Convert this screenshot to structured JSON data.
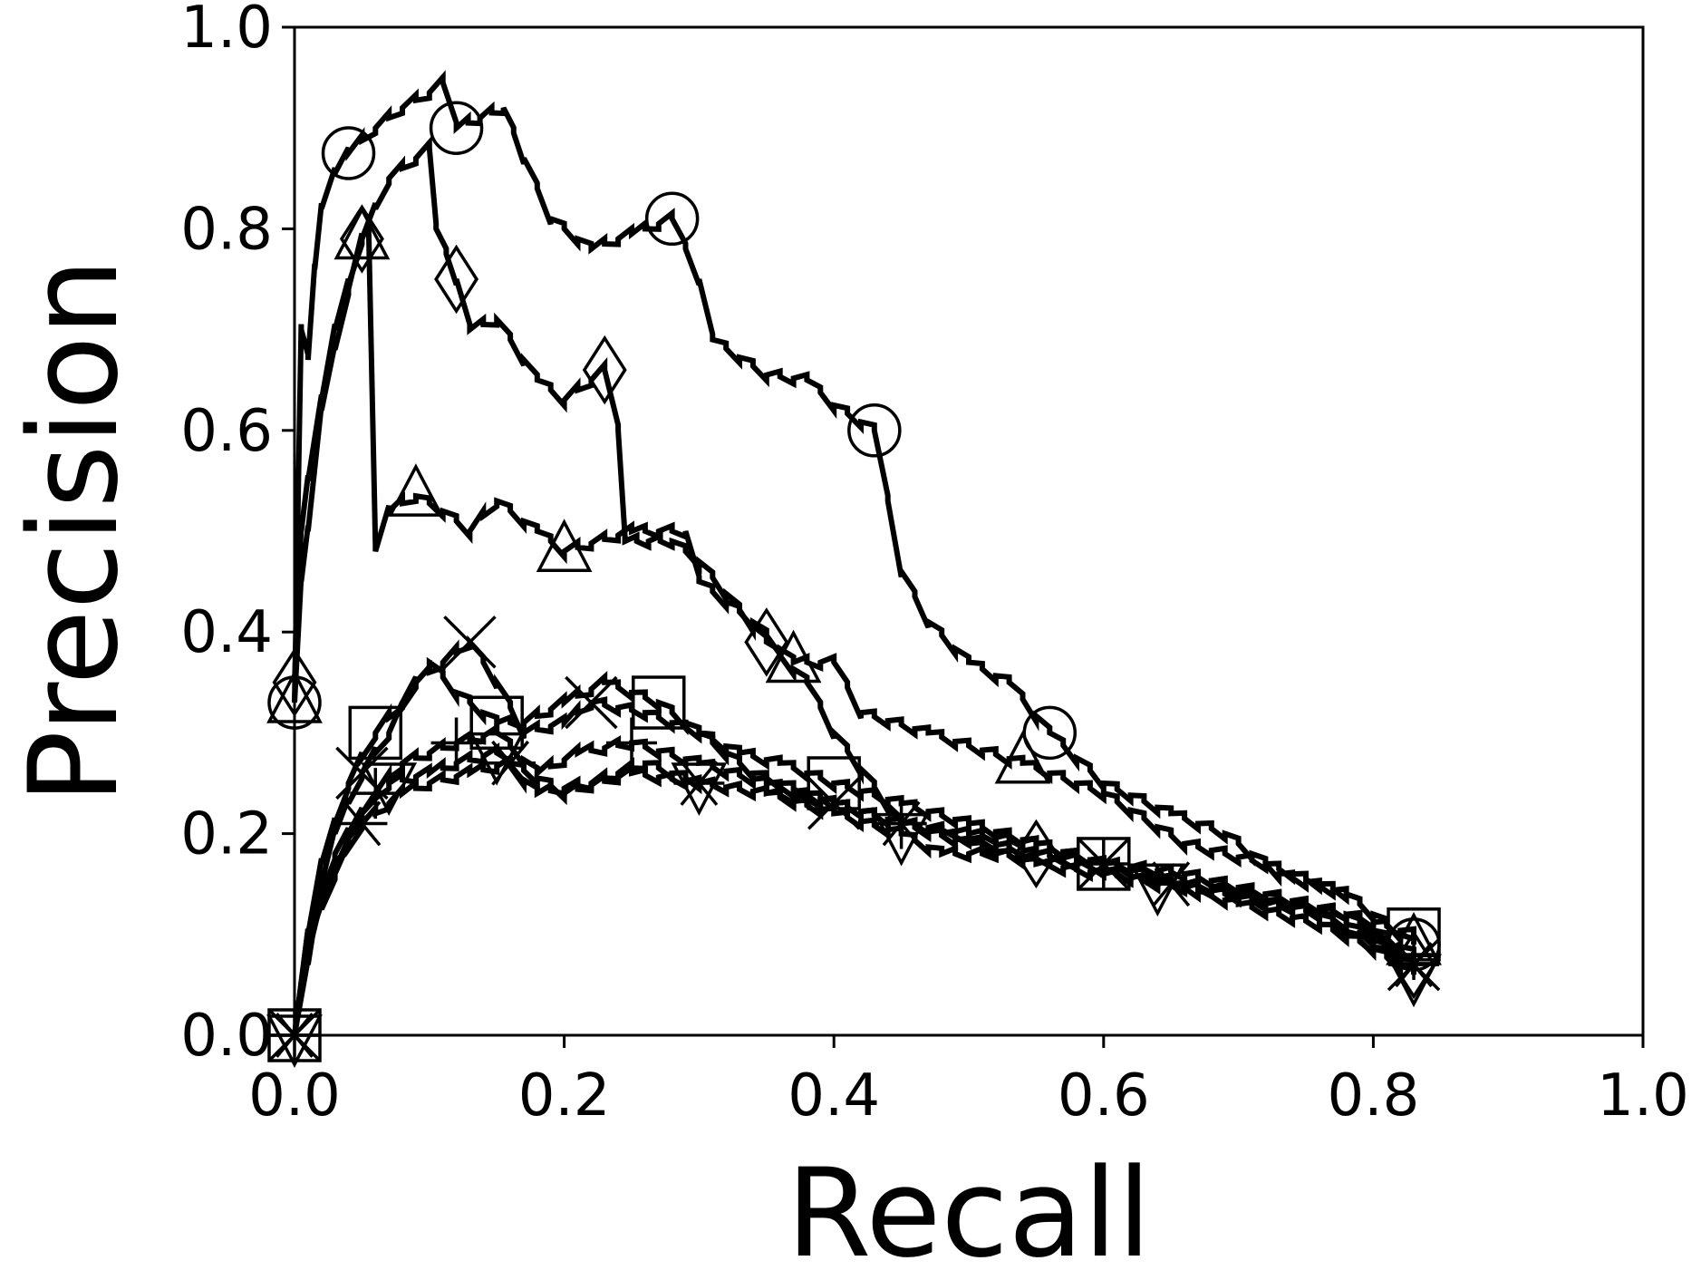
{
  "chart_data": {
    "type": "line",
    "xlabel": "Recall",
    "ylabel": "Precision",
    "xlim": [
      0.0,
      1.0
    ],
    "ylim": [
      0.0,
      1.0
    ],
    "xticks": [
      "0.0",
      "0.2",
      "0.4",
      "0.6",
      "0.8",
      "1.0"
    ],
    "yticks": [
      "0.0",
      "0.2",
      "0.4",
      "0.6",
      "0.8",
      "1.0"
    ],
    "grid": false,
    "legend": "none",
    "line_color": "#000000",
    "series": [
      {
        "marker": "circle",
        "x": [
          0.0,
          0.005,
          0.01,
          0.015,
          0.02,
          0.03,
          0.04,
          0.06,
          0.08,
          0.1,
          0.11,
          0.12,
          0.155,
          0.17,
          0.19,
          0.22,
          0.25,
          0.28,
          0.3,
          0.31,
          0.35,
          0.38,
          0.4,
          0.43,
          0.45,
          0.47,
          0.5,
          0.53,
          0.56,
          0.6,
          0.65,
          0.69,
          0.73,
          0.78,
          0.83
        ],
        "y": [
          0.33,
          0.7,
          0.67,
          0.76,
          0.82,
          0.855,
          0.875,
          0.9,
          0.92,
          0.935,
          0.945,
          0.9,
          0.92,
          0.87,
          0.81,
          0.78,
          0.795,
          0.81,
          0.75,
          0.69,
          0.655,
          0.65,
          0.625,
          0.6,
          0.46,
          0.41,
          0.37,
          0.35,
          0.3,
          0.25,
          0.22,
          0.2,
          0.16,
          0.14,
          0.09
        ]
      },
      {
        "marker": "diamond",
        "x": [
          0.0,
          0.005,
          0.01,
          0.02,
          0.03,
          0.05,
          0.07,
          0.09,
          0.1,
          0.105,
          0.12,
          0.13,
          0.15,
          0.18,
          0.2,
          0.23,
          0.24,
          0.245,
          0.28,
          0.3,
          0.35,
          0.38,
          0.4,
          0.45,
          0.48,
          0.55,
          0.6,
          0.66,
          0.72,
          0.78,
          0.83
        ],
        "y": [
          0.35,
          0.5,
          0.55,
          0.63,
          0.7,
          0.79,
          0.85,
          0.87,
          0.88,
          0.8,
          0.75,
          0.7,
          0.71,
          0.65,
          0.63,
          0.66,
          0.6,
          0.49,
          0.49,
          0.47,
          0.39,
          0.35,
          0.3,
          0.21,
          0.2,
          0.18,
          0.17,
          0.16,
          0.14,
          0.12,
          0.07
        ]
      },
      {
        "marker": "triangle-up",
        "x": [
          0.0,
          0.005,
          0.01,
          0.02,
          0.04,
          0.05,
          0.055,
          0.06,
          0.07,
          0.09,
          0.11,
          0.13,
          0.15,
          0.18,
          0.2,
          0.25,
          0.29,
          0.3,
          0.34,
          0.37,
          0.4,
          0.42,
          0.47,
          0.54,
          0.6,
          0.66,
          0.72,
          0.78,
          0.83
        ],
        "y": [
          0.33,
          0.45,
          0.5,
          0.62,
          0.74,
          0.79,
          0.8,
          0.48,
          0.52,
          0.535,
          0.52,
          0.5,
          0.53,
          0.5,
          0.48,
          0.5,
          0.5,
          0.45,
          0.41,
          0.37,
          0.37,
          0.32,
          0.3,
          0.27,
          0.24,
          0.19,
          0.17,
          0.14,
          0.09
        ]
      },
      {
        "marker": "x",
        "x": [
          0.0,
          0.01,
          0.02,
          0.03,
          0.05,
          0.07,
          0.09,
          0.11,
          0.13,
          0.15,
          0.17,
          0.2,
          0.22,
          0.26,
          0.3,
          0.34,
          0.4,
          0.45,
          0.48,
          0.55,
          0.6,
          0.66,
          0.72,
          0.78,
          0.83
        ],
        "y": [
          0.0,
          0.07,
          0.15,
          0.2,
          0.26,
          0.3,
          0.35,
          0.37,
          0.39,
          0.35,
          0.3,
          0.31,
          0.33,
          0.32,
          0.3,
          0.26,
          0.23,
          0.21,
          0.2,
          0.18,
          0.17,
          0.15,
          0.14,
          0.11,
          0.07
        ]
      },
      {
        "marker": "square",
        "x": [
          0.0,
          0.01,
          0.02,
          0.04,
          0.06,
          0.08,
          0.1,
          0.12,
          0.15,
          0.17,
          0.2,
          0.23,
          0.27,
          0.3,
          0.33,
          0.36,
          0.4,
          0.45,
          0.5,
          0.55,
          0.6,
          0.66,
          0.72,
          0.78,
          0.83
        ],
        "y": [
          0.0,
          0.1,
          0.17,
          0.25,
          0.3,
          0.33,
          0.37,
          0.34,
          0.31,
          0.31,
          0.33,
          0.35,
          0.33,
          0.3,
          0.28,
          0.27,
          0.25,
          0.23,
          0.21,
          0.19,
          0.17,
          0.15,
          0.13,
          0.12,
          0.1
        ]
      },
      {
        "marker": "plus",
        "x": [
          0.0,
          0.01,
          0.02,
          0.04,
          0.06,
          0.08,
          0.1,
          0.12,
          0.15,
          0.18,
          0.21,
          0.25,
          0.3,
          0.35,
          0.4,
          0.45,
          0.5,
          0.55,
          0.6,
          0.66,
          0.72,
          0.78,
          0.83
        ],
        "y": [
          0.0,
          0.08,
          0.13,
          0.2,
          0.24,
          0.27,
          0.28,
          0.29,
          0.3,
          0.26,
          0.28,
          0.29,
          0.27,
          0.25,
          0.23,
          0.21,
          0.2,
          0.19,
          0.17,
          0.16,
          0.14,
          0.12,
          0.08
        ]
      },
      {
        "marker": "triangle-down",
        "x": [
          0.0,
          0.01,
          0.03,
          0.05,
          0.07,
          0.1,
          0.12,
          0.15,
          0.18,
          0.22,
          0.26,
          0.3,
          0.35,
          0.4,
          0.45,
          0.48,
          0.52,
          0.58,
          0.64,
          0.7,
          0.76,
          0.83
        ],
        "y": [
          0.0,
          0.1,
          0.18,
          0.22,
          0.25,
          0.26,
          0.27,
          0.28,
          0.24,
          0.25,
          0.27,
          0.25,
          0.24,
          0.22,
          0.2,
          0.18,
          0.18,
          0.17,
          0.15,
          0.14,
          0.12,
          0.06
        ]
      },
      {
        "marker": "asterisk",
        "x": [
          0.0,
          0.01,
          0.03,
          0.05,
          0.08,
          0.1,
          0.13,
          0.16,
          0.2,
          0.25,
          0.3,
          0.35,
          0.4,
          0.45,
          0.5,
          0.55,
          0.6,
          0.65,
          0.7,
          0.76,
          0.83
        ],
        "y": [
          0.0,
          0.09,
          0.16,
          0.21,
          0.24,
          0.25,
          0.26,
          0.27,
          0.24,
          0.26,
          0.25,
          0.24,
          0.23,
          0.21,
          0.19,
          0.17,
          0.16,
          0.15,
          0.13,
          0.11,
          0.07
        ]
      }
    ]
  }
}
